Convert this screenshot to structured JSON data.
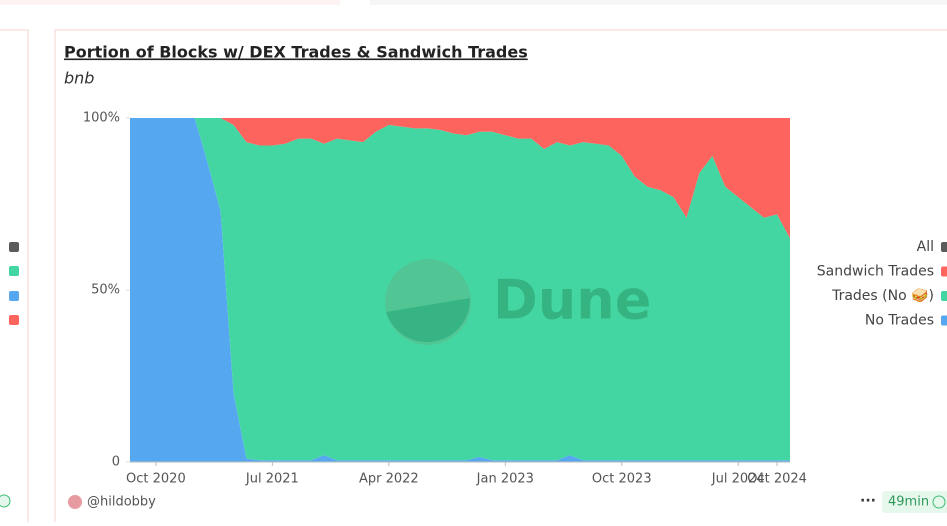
{
  "title": "Portion of Blocks w/ DEX Trades & Sandwich Trades",
  "subtitle": "bnb",
  "watermark": "Dune",
  "author": "@hildobby",
  "refresh": "49min",
  "chart_data": {
    "type": "area",
    "stacked": true,
    "x": [
      "2020-08",
      "2020-09",
      "2020-10",
      "2020-11",
      "2020-12",
      "2021-01",
      "2021-02",
      "2021-03",
      "2021-04",
      "2021-05",
      "2021-06",
      "2021-07",
      "2021-08",
      "2021-09",
      "2021-10",
      "2021-11",
      "2021-12",
      "2022-01",
      "2022-02",
      "2022-03",
      "2022-04",
      "2022-05",
      "2022-06",
      "2022-07",
      "2022-08",
      "2022-09",
      "2022-10",
      "2022-11",
      "2022-12",
      "2023-01",
      "2023-02",
      "2023-03",
      "2023-04",
      "2023-05",
      "2023-06",
      "2023-07",
      "2023-08",
      "2023-09",
      "2023-10",
      "2023-11",
      "2023-12",
      "2024-01",
      "2024-02",
      "2024-03",
      "2024-04",
      "2024-05",
      "2024-06",
      "2024-07",
      "2024-08",
      "2024-09",
      "2024-10",
      "2024-11"
    ],
    "series": [
      {
        "name": "No Trades",
        "color": "#55a8f0",
        "values": [
          100,
          100,
          100,
          100,
          100,
          100,
          87,
          73,
          20,
          1,
          0.5,
          0.5,
          0.5,
          0.5,
          0.5,
          2,
          0.5,
          0.5,
          0.5,
          0.5,
          0.5,
          0.5,
          0.5,
          0.5,
          0.5,
          0.5,
          0.5,
          1.5,
          0.5,
          0.5,
          0.5,
          0.5,
          0.5,
          0.5,
          2,
          0.5,
          0.5,
          0.5,
          0.5,
          0.5,
          0.5,
          0.5,
          0.5,
          0.5,
          0.5,
          0.5,
          0.5,
          0.5,
          0.5,
          0.5,
          0.5,
          0.5
        ]
      },
      {
        "name": "Trades (No 🥪)",
        "color": "#43d6a2",
        "values": [
          0,
          0,
          0,
          0,
          0,
          0,
          13,
          27,
          78,
          92,
          91.5,
          91.5,
          92,
          93.5,
          93.5,
          90.5,
          93.5,
          93,
          92.5,
          95.5,
          97.5,
          97,
          96.5,
          96.5,
          96,
          95,
          94.5,
          94.5,
          95.5,
          94.5,
          93.5,
          93.5,
          90.5,
          92.5,
          90,
          92.5,
          92,
          91.5,
          88.5,
          82.5,
          79.5,
          78.5,
          76.5,
          70.5,
          83.5,
          88.5,
          79.5,
          76.5,
          73.5,
          70.5,
          71.5,
          64.5
        ]
      },
      {
        "name": "Sandwich Trades",
        "color": "#fe645e",
        "values": [
          0,
          0,
          0,
          0,
          0,
          0,
          0,
          0,
          2,
          7,
          8,
          8,
          7.5,
          6,
          6,
          7.5,
          6,
          6.5,
          7,
          4,
          2,
          2.5,
          3,
          3,
          3.5,
          4.5,
          5,
          4,
          4,
          5,
          6,
          6,
          9,
          7,
          8,
          7,
          7.5,
          8,
          11,
          17,
          20,
          21,
          23,
          29,
          16,
          11,
          20,
          23,
          26,
          29,
          28,
          35
        ]
      },
      {
        "name": "All",
        "color": "#5b5b5b",
        "values": [
          0,
          0,
          0,
          0,
          0,
          0,
          0,
          0,
          0,
          0,
          0,
          0,
          0,
          0,
          0,
          0,
          0,
          0,
          0,
          0,
          0,
          0,
          0,
          0,
          0,
          0,
          0,
          0,
          0,
          0,
          0,
          0,
          0,
          0,
          0,
          0,
          0,
          0,
          0,
          0,
          0,
          0,
          0,
          0,
          0,
          0,
          0,
          0,
          0,
          0,
          0,
          0
        ]
      }
    ],
    "ylim": [
      0,
      100
    ],
    "yticks": [
      0,
      {
        "value": 50,
        "label": "50%"
      },
      {
        "value": 100,
        "label": "100%"
      }
    ],
    "xticks": [
      {
        "value": "2020-10",
        "label": "Oct 2020"
      },
      {
        "value": "2021-07",
        "label": "Jul 2021"
      },
      {
        "value": "2022-04",
        "label": "Apr 2022"
      },
      {
        "value": "2023-01",
        "label": "Jan 2023"
      },
      {
        "value": "2023-10",
        "label": "Oct 2023"
      },
      {
        "value": "2024-07",
        "label": "Jul 2024"
      },
      {
        "value": "2024-10",
        "label": "Oct 2024"
      }
    ],
    "legend": "right"
  }
}
